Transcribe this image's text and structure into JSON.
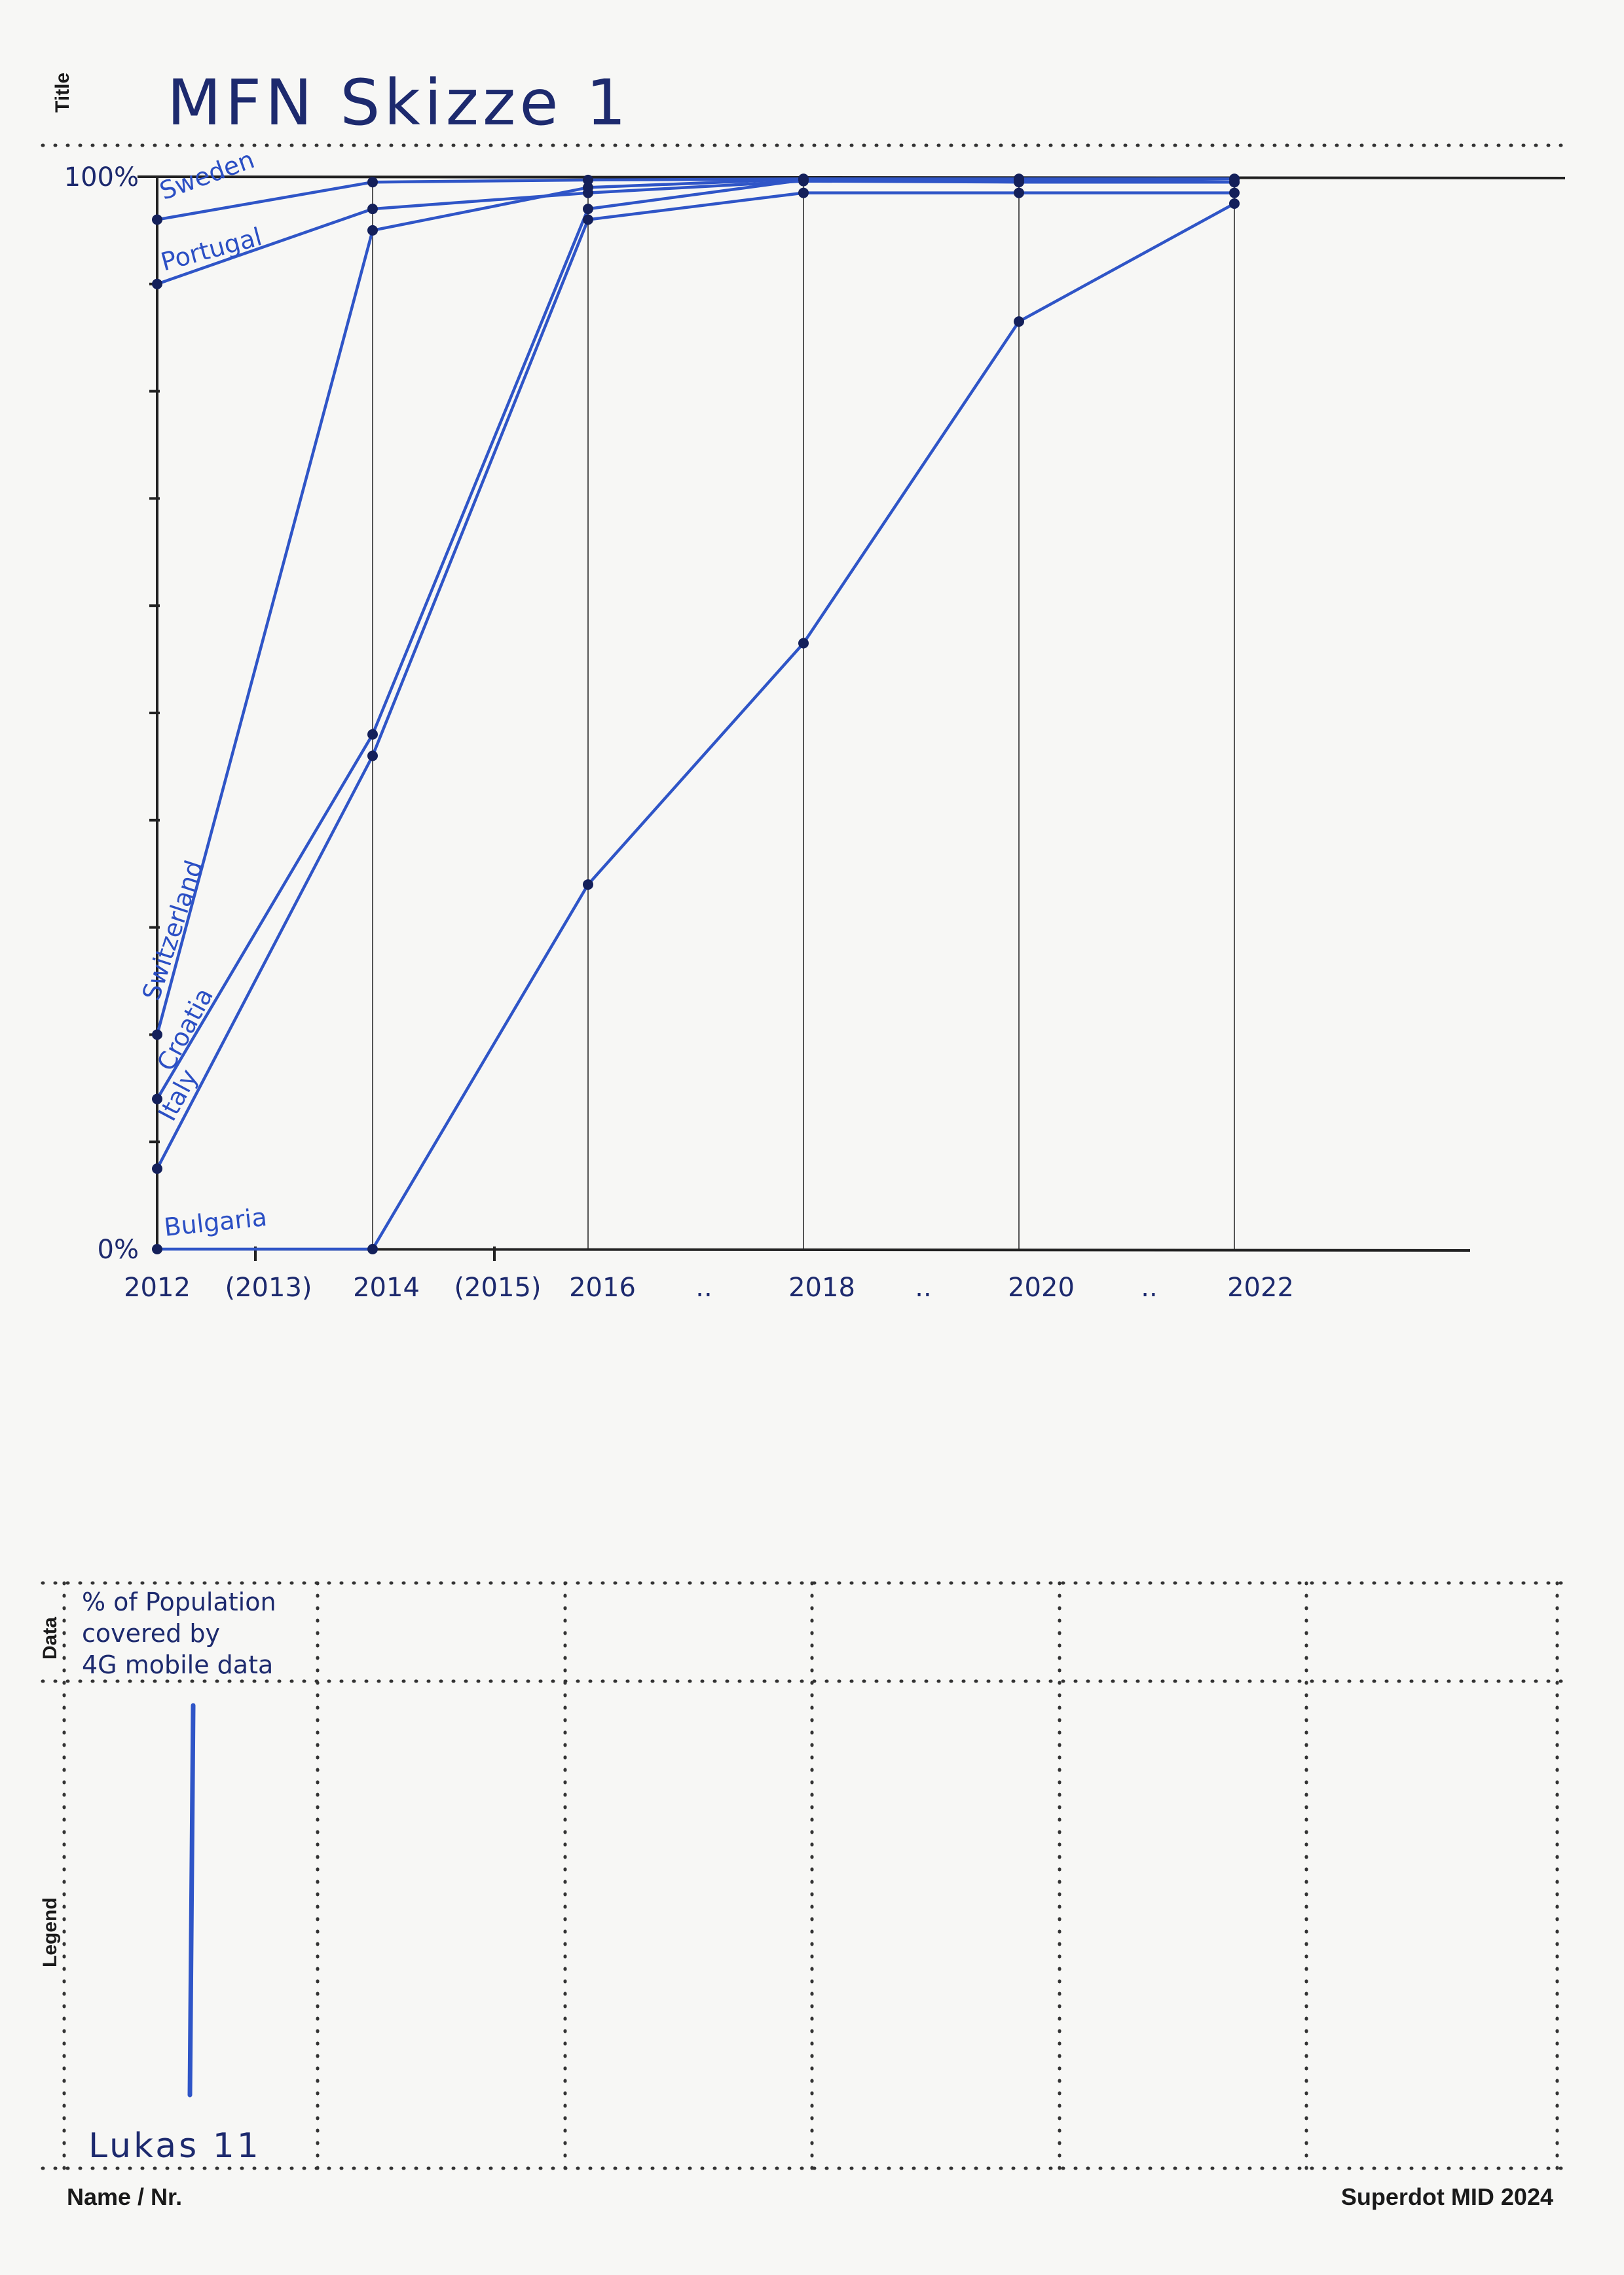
{
  "sheet": {
    "side_labels": {
      "title": "Title",
      "data": "Data",
      "legend": "Legend"
    },
    "footer_left": "Name / Nr.",
    "footer_right": "Superdot MID 2024",
    "signature": "Lukas 11"
  },
  "chart_data": {
    "type": "line",
    "title": "MFN Skizze 1",
    "ylabel": "",
    "xlabel": "",
    "y_ticks_labeled": [
      "0%",
      "100%"
    ],
    "ylim": [
      0,
      100
    ],
    "x_tick_labels": [
      "2012",
      "(2013)",
      "2014",
      "(2015)",
      "2016",
      "..",
      "2018",
      "..",
      "2020",
      "..",
      "2022"
    ],
    "x": [
      2012,
      2014,
      2016,
      2018,
      2020,
      2022
    ],
    "series": [
      {
        "name": "Sweden",
        "values": [
          96,
          99.5,
          99.7,
          99.8,
          99.8,
          99.8
        ],
        "color": "#2f55c7"
      },
      {
        "name": "Portugal",
        "values": [
          90,
          97,
          98.5,
          99.6,
          99.5,
          99.5
        ],
        "color": "#2f55c7"
      },
      {
        "name": "Switzerland",
        "values": [
          20,
          95,
          99,
          99.8,
          99.8,
          99.8
        ],
        "color": "#1d2a6e"
      },
      {
        "name": "Croatia",
        "values": [
          14,
          48,
          97,
          99.7,
          99.7,
          99.5
        ],
        "color": "#2f55c7"
      },
      {
        "name": "Italy",
        "values": [
          7.5,
          46,
          96,
          98.5,
          98.5,
          98.5
        ],
        "color": "#2f55c7"
      },
      {
        "name": "Bulgaria",
        "values": [
          0,
          0,
          34,
          56.5,
          86.5,
          97.5
        ],
        "color": "#2f55c7"
      }
    ],
    "data_note": "% of Population covered by 4G mobile data",
    "legend_placement": "left, next to line starts",
    "grid": true
  }
}
